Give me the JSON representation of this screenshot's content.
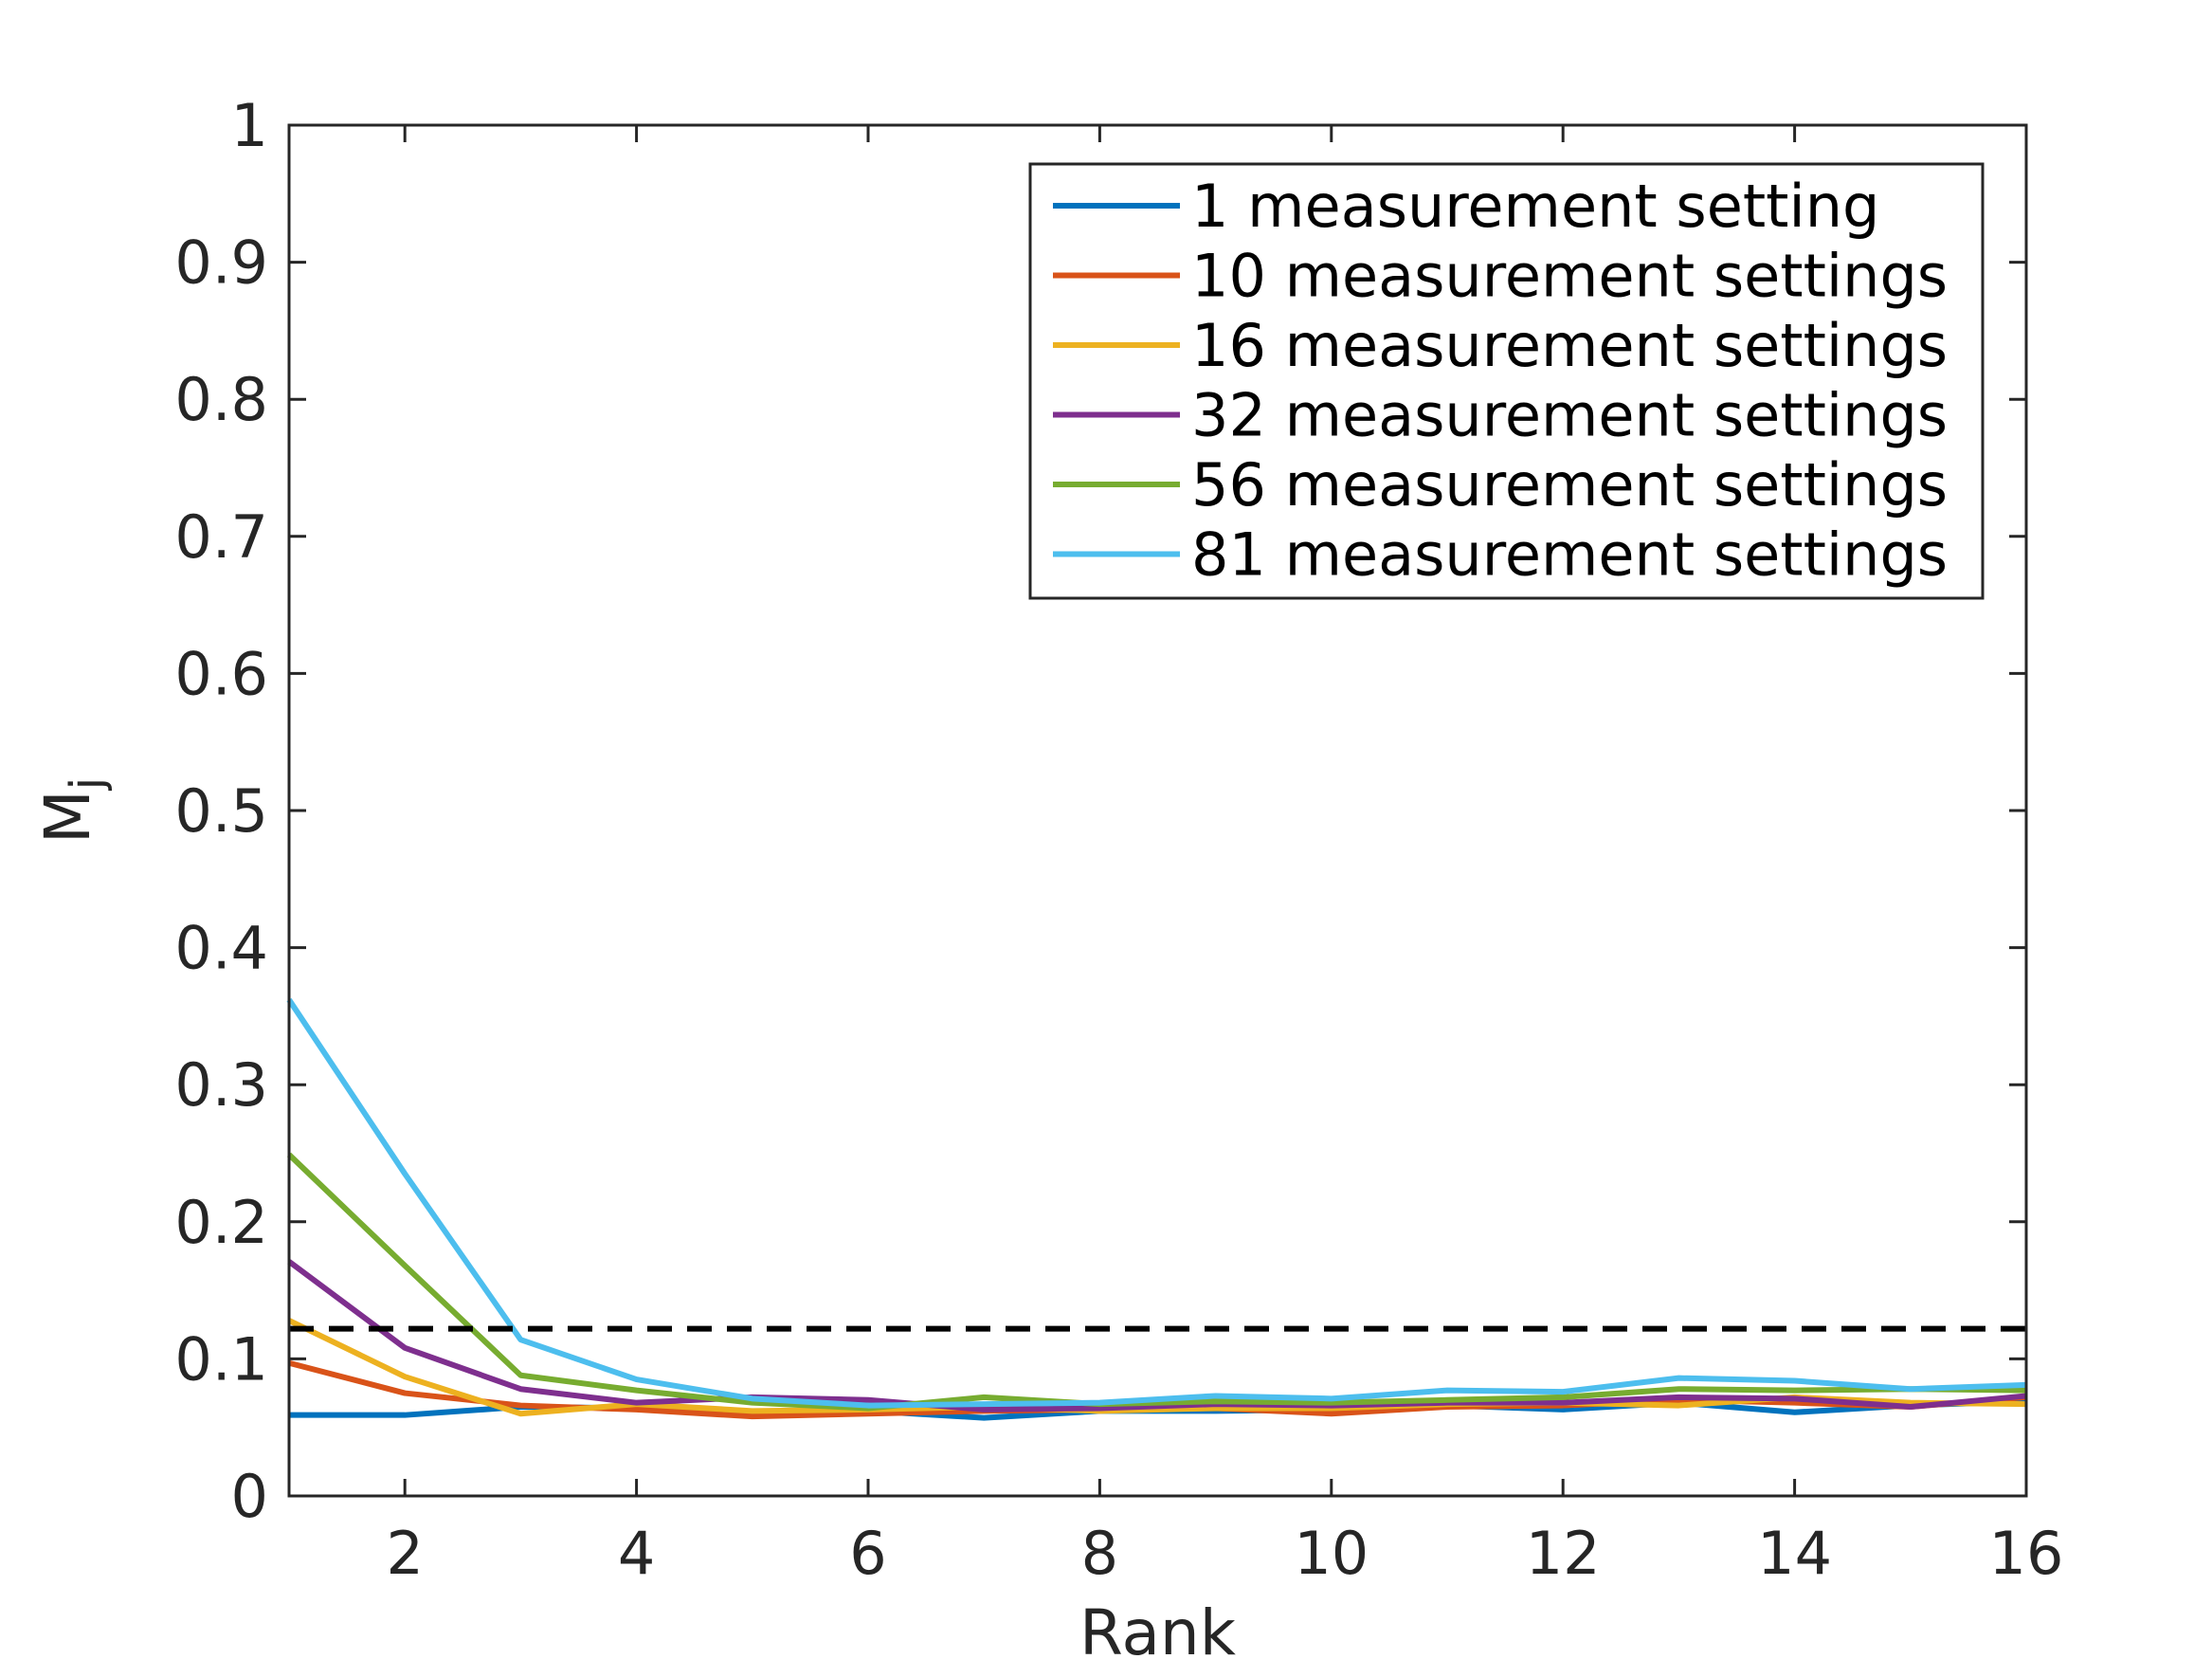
{
  "chart_data": {
    "type": "line",
    "title": "",
    "xlabel": "Rank",
    "ylabel_main": "M",
    "ylabel_sub": "j",
    "xlim": [
      1,
      16
    ],
    "ylim": [
      0,
      1
    ],
    "xticks": [
      2,
      4,
      6,
      8,
      10,
      12,
      14,
      16
    ],
    "xtick_labels": [
      "2",
      "4",
      "6",
      "8",
      "10",
      "12",
      "14",
      "16"
    ],
    "yticks": [
      0,
      0.1,
      0.2,
      0.3,
      0.4,
      0.5,
      0.6,
      0.7,
      0.8,
      0.9,
      1
    ],
    "ytick_labels": [
      "0",
      "0.1",
      "0.2",
      "0.3",
      "0.4",
      "0.5",
      "0.6",
      "0.7",
      "0.8",
      "0.9",
      "1"
    ],
    "grid": false,
    "legend_position": "top-right",
    "x": [
      1,
      2,
      3,
      4,
      5,
      6,
      7,
      8,
      9,
      10,
      11,
      12,
      13,
      14,
      15,
      16
    ],
    "series": [
      {
        "name": "1 measurement setting",
        "color": "#0072BD",
        "values": [
          0.059,
          0.059,
          0.065,
          0.064,
          0.061,
          0.062,
          0.057,
          0.062,
          0.062,
          0.063,
          0.066,
          0.063,
          0.068,
          0.061,
          0.066,
          0.069
        ]
      },
      {
        "name": "10 measurement settings",
        "color": "#D95319",
        "values": [
          0.097,
          0.075,
          0.066,
          0.063,
          0.058,
          0.06,
          0.062,
          0.063,
          0.064,
          0.06,
          0.065,
          0.066,
          0.07,
          0.068,
          0.065,
          0.072
        ]
      },
      {
        "name": "16 measurement settings",
        "color": "#EDB120",
        "values": [
          0.128,
          0.087,
          0.06,
          0.067,
          0.062,
          0.063,
          0.065,
          0.062,
          0.064,
          0.064,
          0.067,
          0.068,
          0.066,
          0.072,
          0.068,
          0.067
        ]
      },
      {
        "name": "32 measurement settings",
        "color": "#7E2F8E",
        "values": [
          0.171,
          0.108,
          0.078,
          0.068,
          0.072,
          0.07,
          0.063,
          0.064,
          0.067,
          0.066,
          0.068,
          0.068,
          0.072,
          0.071,
          0.065,
          0.073
        ]
      },
      {
        "name": "56 measurement settings",
        "color": "#77AC30",
        "values": [
          0.249,
          0.168,
          0.088,
          0.077,
          0.068,
          0.064,
          0.072,
          0.067,
          0.069,
          0.068,
          0.07,
          0.072,
          0.078,
          0.077,
          0.078,
          0.077
        ]
      },
      {
        "name": "81 measurement settings",
        "color": "#4DBEEE",
        "values": [
          0.362,
          0.235,
          0.114,
          0.085,
          0.071,
          0.066,
          0.067,
          0.068,
          0.073,
          0.071,
          0.077,
          0.076,
          0.086,
          0.084,
          0.078,
          0.081
        ]
      }
    ],
    "reference_line": {
      "y": 0.122,
      "style": "dashed",
      "color": "#000000"
    }
  }
}
